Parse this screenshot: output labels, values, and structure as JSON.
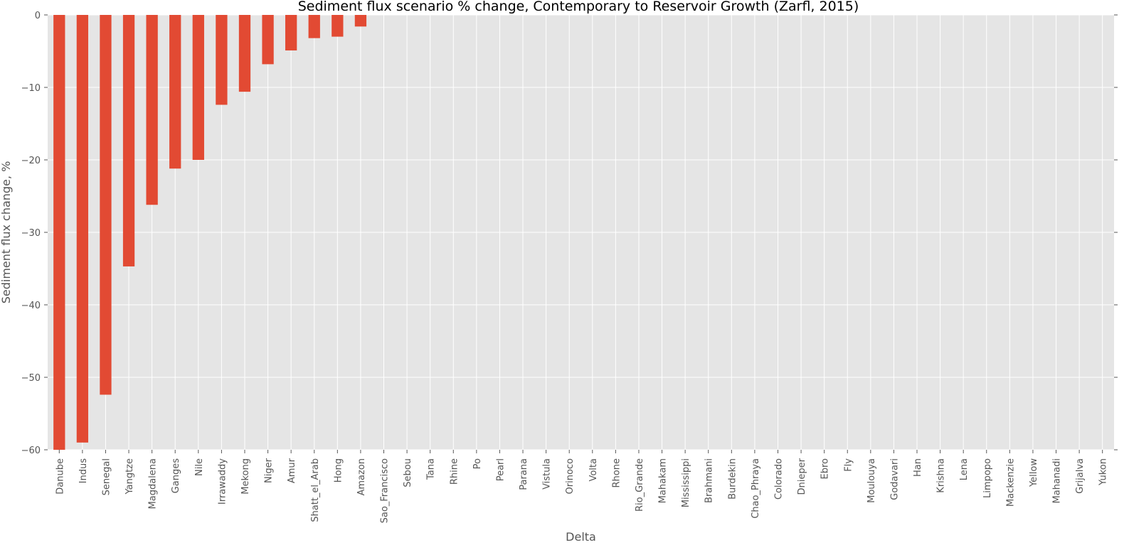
{
  "chart_data": {
    "type": "bar",
    "title": "Sediment flux scenario % change, Contemporary to Reservoir Growth (Zarfl, 2015)",
    "xlabel": "Delta",
    "ylabel": "Sediment flux change, %",
    "ylim": [
      -60,
      0
    ],
    "yticks": [
      0,
      -10,
      -20,
      -30,
      -40,
      -50,
      -60
    ],
    "ytick_labels": [
      "0",
      "−10",
      "−20",
      "−30",
      "−40",
      "−50",
      "−60"
    ],
    "grid": true,
    "categories": [
      "Danube",
      "Indus",
      "Senegal",
      "Yangtze",
      "Magdalena",
      "Ganges",
      "Nile",
      "Irrawaddy",
      "Mekong",
      "Niger",
      "Amur",
      "Shatt_el_Arab",
      "Hong",
      "Amazon",
      "Sao_Francisco",
      "Sebou",
      "Tana",
      "Rhine",
      "Po",
      "Pearl",
      "Parana",
      "Vistula",
      "Orinoco",
      "Volta",
      "Rhone",
      "Rio_Grande",
      "Mahakam",
      "Mississippi",
      "Brahmani",
      "Burdekin",
      "Chao_Phraya",
      "Colorado",
      "Dnieper",
      "Ebro",
      "Fly",
      "Moulouya",
      "Godavari",
      "Han",
      "Krishna",
      "Lena",
      "Limpopo",
      "Mackenzie",
      "Yellow",
      "Mahanadi",
      "Grijalva",
      "Yukon"
    ],
    "values": [
      -60,
      -59,
      -52.4,
      -34.7,
      -26.2,
      -21.2,
      -20.0,
      -12.4,
      -10.6,
      -6.8,
      -4.9,
      -3.2,
      -3.0,
      -1.6,
      0,
      0,
      0,
      0,
      0,
      0,
      0,
      0,
      0,
      0,
      0,
      0,
      0,
      0,
      0,
      0,
      0,
      0,
      0,
      0,
      0,
      0,
      0,
      0,
      0,
      0,
      0,
      0,
      0,
      0,
      0,
      0
    ],
    "colors": {
      "bar": "#E24A33",
      "plot_background": "#E5E5E5",
      "grid": "#FFFFFF",
      "text": "#555555"
    }
  }
}
